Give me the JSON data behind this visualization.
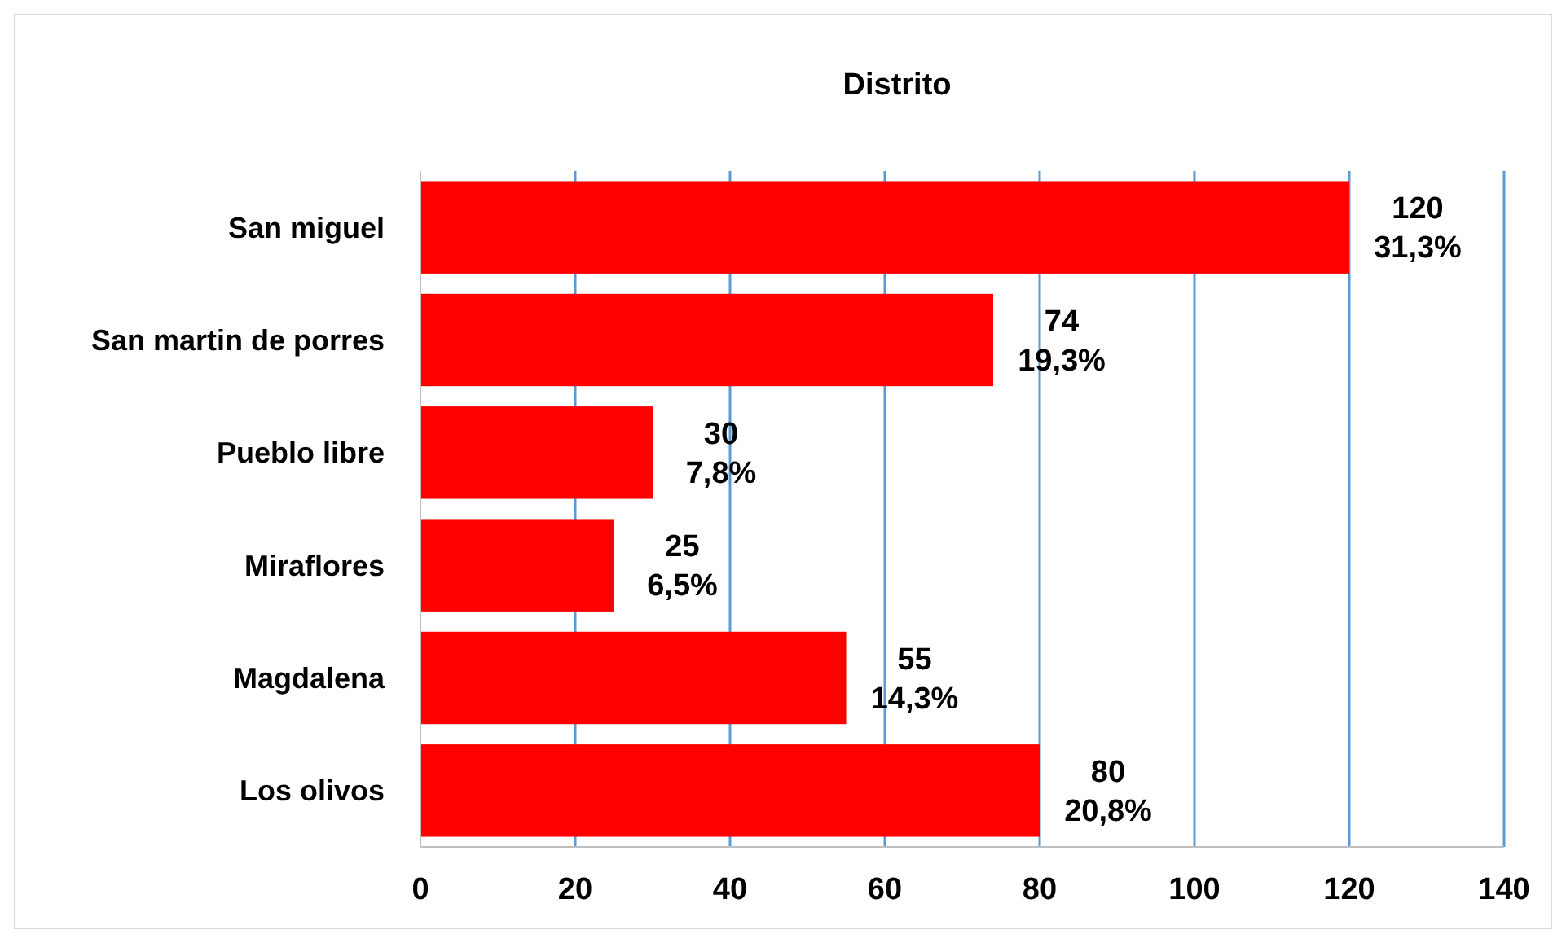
{
  "chart_data": {
    "type": "bar",
    "orientation": "horizontal",
    "title": "Distrito",
    "categories": [
      "San miguel",
      "San martin de porres",
      "Pueblo libre",
      "Miraflores",
      "Magdalena",
      "Los olivos"
    ],
    "values": [
      120,
      74,
      30,
      25,
      55,
      80
    ],
    "value_labels": [
      "120\n31,3%",
      "74\n19,3%",
      "30\n7,8%",
      "25\n6,5%",
      "55\n14,3%",
      "80\n20,8%"
    ],
    "color": "#ff0000",
    "xlim": [
      0,
      140
    ],
    "xticks": [
      0,
      20,
      40,
      60,
      80,
      100,
      120,
      140
    ],
    "grid": "x"
  }
}
